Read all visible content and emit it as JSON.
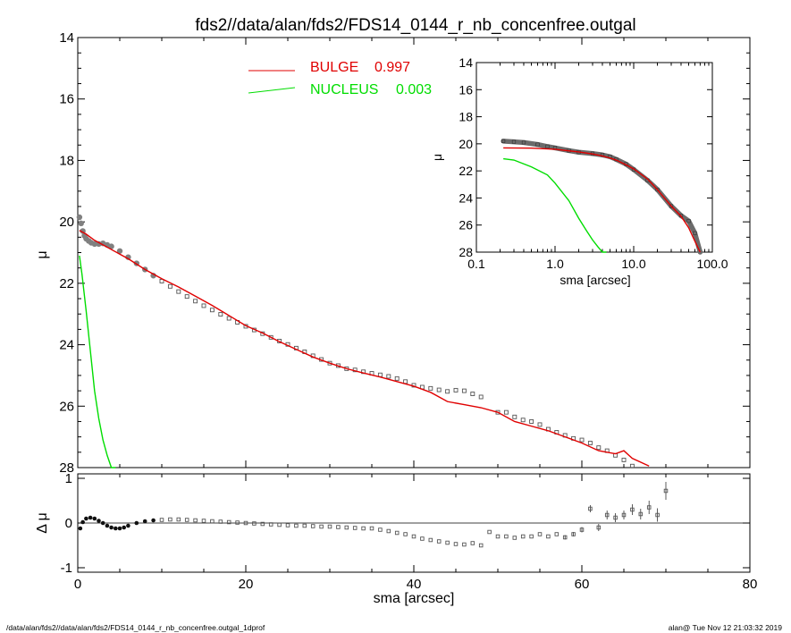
{
  "title": "fds2//data/alan/fds2/FDS14_0144_r_nb_concenfree.outgal",
  "footer": {
    "left": "/data/alan/fds2//data/alan/fds2/FDS14_0144_r_nb_concenfree.outgal_1dprof",
    "right": "alan@  Tue Nov 12 21:03:32 2019"
  },
  "colors": {
    "bulge": "#e00000",
    "nucleus": "#00dd00",
    "data": "#808080",
    "axes": "#000000"
  },
  "legend": {
    "bulge_label": "BULGE",
    "bulge_value": "0.997",
    "nucleus_label": "NUCLEUS",
    "nucleus_value": "0.003"
  },
  "chart_data": [
    {
      "type": "line",
      "name": "main-profile",
      "xlabel": "sma [arcsec]",
      "ylabel": "μ",
      "xlim": [
        0,
        80
      ],
      "ylim": [
        28,
        14
      ],
      "xticks": [
        0,
        20,
        40,
        60,
        80
      ],
      "yticks": [
        14,
        16,
        18,
        20,
        22,
        24,
        26,
        28
      ],
      "data_points": {
        "x": [
          0.2,
          0.4,
          0.6,
          0.8,
          1.0,
          1.3,
          1.6,
          2.0,
          2.5,
          3.0,
          3.5,
          4.0,
          5,
          6,
          7,
          8,
          9,
          10,
          11,
          12,
          13,
          14,
          15,
          16,
          17,
          18,
          19,
          20,
          21,
          22,
          23,
          24,
          25,
          26,
          27,
          28,
          29,
          30,
          31,
          32,
          33,
          34,
          35,
          36,
          37,
          38,
          39,
          40,
          41,
          42,
          43,
          44,
          45,
          46,
          47,
          48,
          50,
          51,
          52,
          53,
          54,
          55,
          56,
          57,
          58,
          59,
          60,
          61,
          62,
          63,
          64,
          65,
          66,
          67,
          68,
          69,
          70
        ],
        "y": [
          19.85,
          20.05,
          20.3,
          20.45,
          20.55,
          20.62,
          20.68,
          20.72,
          20.72,
          20.7,
          20.75,
          20.8,
          20.95,
          21.15,
          21.35,
          21.55,
          21.75,
          21.93,
          22.1,
          22.27,
          22.43,
          22.58,
          22.73,
          22.87,
          23.01,
          23.14,
          23.27,
          23.4,
          23.52,
          23.64,
          23.76,
          23.88,
          23.99,
          24.11,
          24.23,
          24.36,
          24.48,
          24.6,
          24.68,
          24.78,
          24.82,
          24.88,
          24.93,
          24.98,
          25.03,
          25.1,
          25.2,
          25.32,
          25.38,
          25.42,
          25.47,
          25.52,
          25.48,
          25.5,
          25.6,
          25.7,
          26.2,
          26.2,
          26.35,
          26.45,
          26.5,
          26.6,
          26.75,
          26.85,
          26.95,
          27.05,
          27.1,
          27.2,
          27.35,
          27.45,
          27.6,
          27.75,
          27.95,
          28.1,
          28.3,
          28.5,
          28.8
        ]
      },
      "series": [
        {
          "name": "BULGE",
          "x": [
            0.2,
            1,
            2,
            3,
            4,
            5,
            6,
            8,
            10,
            12,
            14,
            16,
            18,
            20,
            22,
            24,
            26,
            28,
            30,
            32,
            34,
            36,
            38,
            40,
            42,
            44,
            46,
            48,
            50,
            52,
            54,
            56,
            58,
            60,
            62,
            64,
            65,
            66,
            68
          ],
          "values": [
            20.28,
            20.4,
            20.6,
            20.75,
            20.9,
            21.05,
            21.2,
            21.55,
            21.85,
            22.12,
            22.42,
            22.72,
            23.05,
            23.38,
            23.62,
            23.9,
            24.15,
            24.4,
            24.6,
            24.78,
            24.92,
            25.05,
            25.2,
            25.35,
            25.55,
            25.85,
            25.95,
            26.05,
            26.2,
            26.5,
            26.65,
            26.8,
            27.0,
            27.2,
            27.45,
            27.55,
            27.45,
            27.7,
            27.95
          ]
        },
        {
          "name": "NUCLEUS",
          "x": [
            0.2,
            0.5,
            1,
            1.5,
            2,
            2.5,
            3,
            3.5,
            4,
            4.5
          ],
          "values": [
            21.1,
            21.7,
            22.9,
            24.2,
            25.5,
            26.4,
            27.1,
            27.6,
            28.1,
            28.6
          ]
        }
      ]
    },
    {
      "type": "scatter",
      "name": "residuals",
      "xlabel": "sma [arcsec]",
      "ylabel": "Δ μ",
      "xlim": [
        0,
        80
      ],
      "ylim": [
        -1.1,
        1.1
      ],
      "yticks": [
        -1,
        0,
        1
      ],
      "x": [
        0.3,
        0.6,
        1,
        1.5,
        2,
        2.5,
        3,
        3.5,
        4,
        4.5,
        5,
        5.5,
        6,
        7,
        8,
        9,
        10,
        11,
        12,
        13,
        14,
        15,
        16,
        17,
        18,
        19,
        20,
        21,
        22,
        23,
        24,
        25,
        26,
        27,
        28,
        29,
        30,
        31,
        32,
        33,
        34,
        35,
        36,
        37,
        38,
        39,
        40,
        41,
        42,
        43,
        44,
        45,
        46,
        47,
        48,
        49,
        50,
        51,
        52,
        53,
        54,
        55,
        56,
        57,
        58,
        59,
        60,
        61,
        62,
        63,
        64,
        65,
        66,
        67,
        68,
        69,
        70
      ],
      "values": [
        -0.12,
        0.02,
        0.1,
        0.12,
        0.1,
        0.05,
        0.0,
        -0.06,
        -0.1,
        -0.12,
        -0.12,
        -0.1,
        -0.06,
        0.0,
        0.04,
        0.06,
        0.07,
        0.08,
        0.08,
        0.07,
        0.06,
        0.05,
        0.04,
        0.03,
        0.02,
        0.01,
        0.0,
        -0.01,
        -0.02,
        -0.03,
        -0.04,
        -0.05,
        -0.06,
        -0.06,
        -0.07,
        -0.08,
        -0.08,
        -0.09,
        -0.1,
        -0.11,
        -0.12,
        -0.12,
        -0.15,
        -0.18,
        -0.22,
        -0.25,
        -0.3,
        -0.35,
        -0.38,
        -0.41,
        -0.44,
        -0.47,
        -0.48,
        -0.45,
        -0.5,
        -0.2,
        -0.3,
        -0.3,
        -0.33,
        -0.3,
        -0.3,
        -0.25,
        -0.3,
        -0.25,
        -0.32,
        -0.25,
        -0.15,
        0.32,
        -0.1,
        0.18,
        0.12,
        0.18,
        0.3,
        0.2,
        0.35,
        0.18,
        0.72
      ],
      "yerr": [
        0,
        0,
        0,
        0,
        0,
        0,
        0,
        0,
        0,
        0,
        0,
        0,
        0,
        0,
        0,
        0,
        0,
        0,
        0,
        0,
        0,
        0,
        0,
        0,
        0,
        0,
        0,
        0,
        0,
        0,
        0,
        0,
        0,
        0,
        0,
        0,
        0,
        0,
        0,
        0,
        0,
        0,
        0,
        0,
        0,
        0,
        0,
        0,
        0,
        0,
        0,
        0,
        0,
        0,
        0,
        0,
        0,
        0,
        0,
        0,
        0,
        0,
        0,
        0,
        0.05,
        0.05,
        0.06,
        0.08,
        0.08,
        0.1,
        0.1,
        0.1,
        0.12,
        0.12,
        0.15,
        0.15,
        0.2
      ]
    },
    {
      "type": "line",
      "name": "inset-log",
      "xlabel": "sma [arcsec]",
      "ylabel": "μ",
      "xscale": "log",
      "xlim": [
        0.1,
        100.0
      ],
      "ylim": [
        28,
        14
      ],
      "xticks": [
        "0.1",
        "1.0",
        "10.0",
        "100.0"
      ],
      "yticks": [
        14,
        16,
        18,
        20,
        22,
        24,
        26,
        28
      ],
      "data_points": {
        "x": [
          0.22,
          0.3,
          0.4,
          0.6,
          0.8,
          1,
          1.5,
          2,
          3,
          4,
          5,
          6,
          8,
          10,
          15,
          20,
          30,
          40,
          50,
          60,
          70
        ],
        "y": [
          19.8,
          19.85,
          19.9,
          20.05,
          20.2,
          20.3,
          20.5,
          20.62,
          20.72,
          20.82,
          20.95,
          21.15,
          21.5,
          21.9,
          22.7,
          23.38,
          24.6,
          25.3,
          25.7,
          26.6,
          28.6
        ]
      },
      "series": [
        {
          "name": "BULGE",
          "x": [
            0.22,
            0.5,
            1,
            2,
            3,
            4,
            5,
            6,
            8,
            10,
            15,
            20,
            30,
            40,
            50,
            60,
            70
          ],
          "values": [
            20.3,
            20.32,
            20.4,
            20.6,
            20.75,
            20.9,
            21.05,
            21.2,
            21.55,
            21.85,
            22.6,
            23.38,
            24.6,
            25.35,
            26.2,
            27.2,
            28.3
          ]
        },
        {
          "name": "NUCLEUS",
          "x": [
            0.22,
            0.3,
            0.5,
            0.8,
            1,
            1.5,
            2,
            2.5,
            3,
            3.5,
            4,
            4.5
          ],
          "values": [
            21.1,
            21.2,
            21.7,
            22.3,
            22.9,
            24.2,
            25.5,
            26.4,
            27.1,
            27.6,
            28.1,
            28.6
          ]
        }
      ]
    }
  ]
}
